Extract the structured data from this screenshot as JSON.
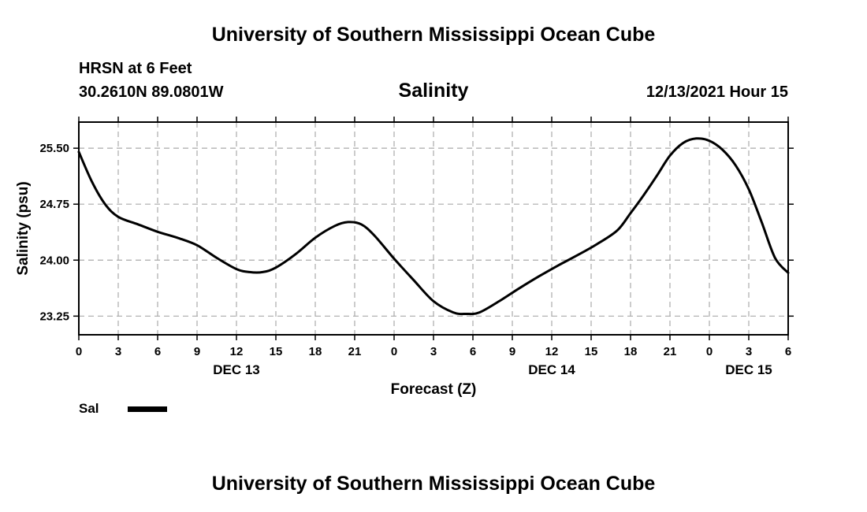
{
  "header": {
    "title": "University of Southern Mississippi Ocean Cube",
    "station": "HRSN at 6 Feet",
    "coordinates": "30.2610N  89.0801W",
    "variable": "Salinity",
    "timestamp": "12/13/2021 Hour 15"
  },
  "footer": {
    "title": "University of Southern Mississippi Ocean Cube"
  },
  "legend": {
    "entries": [
      {
        "label": "Sal",
        "color": "#000000"
      }
    ]
  },
  "chart_data": {
    "type": "line",
    "title": "Salinity",
    "xlabel": "Forecast (Z)",
    "ylabel": "Salinity (psu)",
    "xlim": [
      0,
      54
    ],
    "ylim": [
      23.0,
      25.85
    ],
    "x_ticks": [
      0,
      3,
      6,
      9,
      12,
      15,
      18,
      21,
      24,
      27,
      30,
      33,
      36,
      39,
      42,
      45,
      48,
      51,
      54
    ],
    "x_tick_labels": [
      "0",
      "3",
      "6",
      "9",
      "12",
      "15",
      "18",
      "21",
      "0",
      "3",
      "6",
      "9",
      "12",
      "15",
      "18",
      "21",
      "0",
      "3",
      "6"
    ],
    "y_ticks": [
      23.25,
      24.0,
      24.75,
      25.5
    ],
    "y_tick_labels": [
      "23.25",
      "24.00",
      "24.75",
      "25.50"
    ],
    "date_labels": [
      {
        "x": 12,
        "label": "DEC 13"
      },
      {
        "x": 36,
        "label": "DEC 14"
      },
      {
        "x": 51,
        "label": "DEC 15"
      }
    ],
    "grid": true,
    "series": [
      {
        "name": "Sal",
        "color": "#000000",
        "x": [
          0,
          1,
          2,
          3,
          4.5,
          6,
          7.5,
          9,
          10.5,
          12,
          13,
          14,
          15,
          16.5,
          18,
          19.5,
          20.5,
          21.5,
          22.5,
          24,
          25.5,
          27,
          28.5,
          29.5,
          30.5,
          32,
          33.5,
          35,
          36.5,
          38,
          39.5,
          41,
          42,
          43,
          44,
          45,
          46,
          47,
          48,
          49,
          50,
          51,
          52,
          53,
          54
        ],
        "y": [
          25.45,
          25.05,
          24.75,
          24.58,
          24.48,
          24.38,
          24.3,
          24.2,
          24.03,
          23.88,
          23.84,
          23.84,
          23.9,
          24.08,
          24.3,
          24.46,
          24.51,
          24.48,
          24.33,
          24.02,
          23.73,
          23.45,
          23.3,
          23.28,
          23.3,
          23.45,
          23.62,
          23.78,
          23.93,
          24.07,
          24.22,
          24.4,
          24.63,
          24.87,
          25.13,
          25.4,
          25.57,
          25.63,
          25.6,
          25.48,
          25.27,
          24.95,
          24.5,
          24.03,
          23.83
        ]
      }
    ]
  }
}
